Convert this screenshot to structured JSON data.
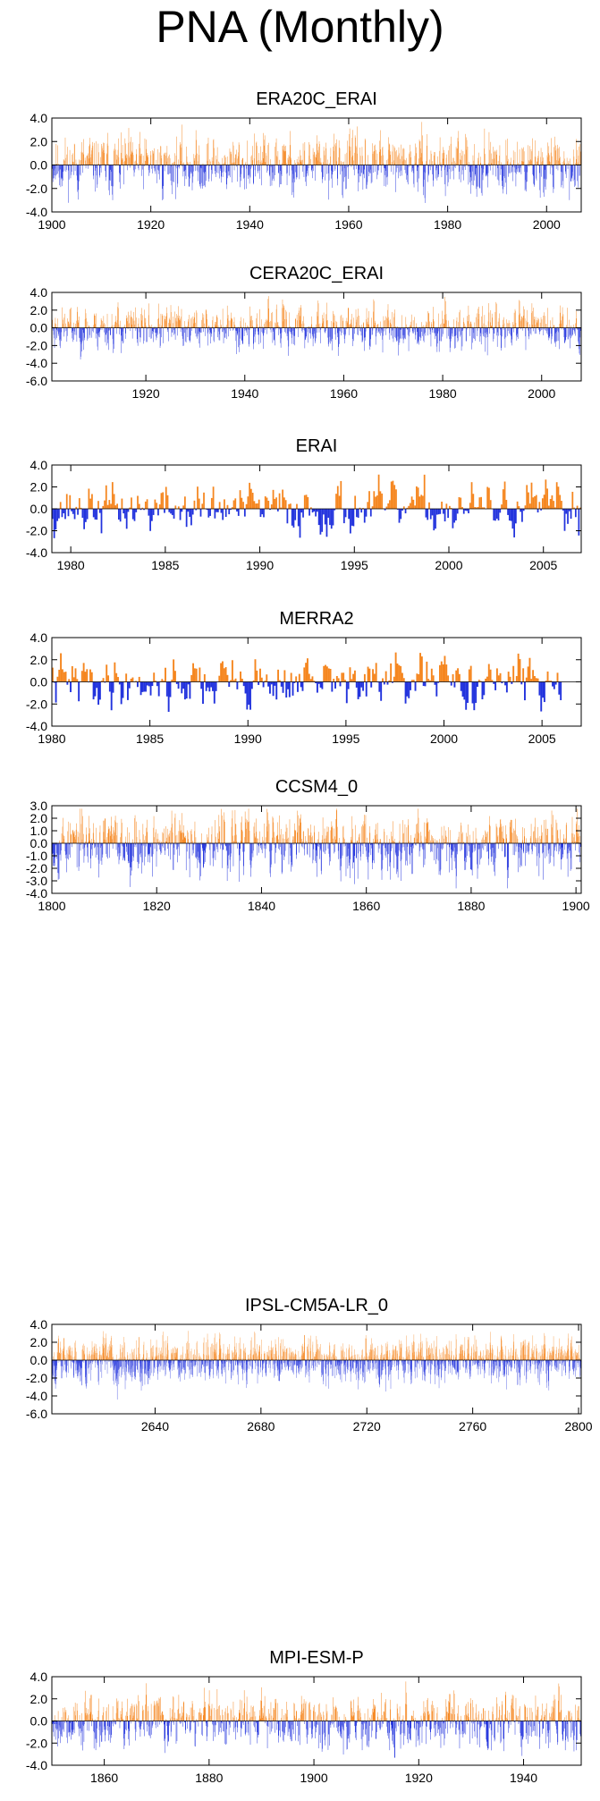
{
  "title": "PNA (Monthly)",
  "colors": {
    "positive": "#f5861f",
    "negative": "#2233dd",
    "axis": "#000000"
  },
  "chart_data": [
    {
      "type": "bar",
      "title": "ERA20C_ERAI",
      "xlim": [
        1900,
        2007
      ],
      "ylim": [
        -4.0,
        4.0
      ],
      "yticks": [
        "4.0",
        "2.0",
        "0.0",
        "-2.0",
        "-4.0"
      ],
      "xticks": [
        "1900",
        "1920",
        "1940",
        "1960",
        "1980",
        "2000"
      ],
      "x_start": 1900,
      "n_months": 1284,
      "amp": 1.1,
      "seed": 11
    },
    {
      "type": "bar",
      "title": "CERA20C_ERAI",
      "xlim": [
        1901,
        2008
      ],
      "ylim": [
        -6.0,
        4.0
      ],
      "yticks": [
        "4.0",
        "2.0",
        "0.0",
        "-2.0",
        "-4.0",
        "-6.0"
      ],
      "xticks": [
        "1920",
        "1940",
        "1960",
        "1980",
        "2000"
      ],
      "x_start": 1901,
      "n_months": 1284,
      "amp": 1.1,
      "seed": 23
    },
    {
      "type": "bar",
      "title": "ERAI",
      "xlim": [
        1979,
        2007
      ],
      "ylim": [
        -4.0,
        4.0
      ],
      "yticks": [
        "4.0",
        "2.0",
        "0.0",
        "-2.0",
        "-4.0"
      ],
      "xticks": [
        "1980",
        "1985",
        "1990",
        "1995",
        "2000",
        "2005"
      ],
      "x_start": 1979,
      "n_months": 336,
      "amp": 1.0,
      "seed": 37
    },
    {
      "type": "bar",
      "title": "MERRA2",
      "xlim": [
        1980,
        2007
      ],
      "ylim": [
        -4.0,
        4.0
      ],
      "yticks": [
        "4.0",
        "2.0",
        "0.0",
        "-2.0",
        "-4.0"
      ],
      "xticks": [
        "1980",
        "1985",
        "1990",
        "1995",
        "2000",
        "2005"
      ],
      "x_start": 1980,
      "n_months": 312,
      "amp": 1.0,
      "seed": 41
    },
    {
      "type": "bar",
      "title": "CCSM4_0",
      "xlim": [
        1800,
        1901
      ],
      "ylim": [
        -4.0,
        3.0
      ],
      "yticks": [
        "3.0",
        "2.0",
        "1.0",
        "0.0",
        "-1.0",
        "-2.0",
        "-3.0",
        "-4.0"
      ],
      "xticks": [
        "1800",
        "1820",
        "1840",
        "1860",
        "1880",
        "1900"
      ],
      "x_start": 1800,
      "n_months": 1212,
      "amp": 1.1,
      "seed": 53
    },
    {
      "type": "bar",
      "title": "IPSL-CM5A-LR_0",
      "xlim": [
        2601,
        2801
      ],
      "ylim": [
        -6.0,
        4.0
      ],
      "yticks": [
        "4.0",
        "2.0",
        "0.0",
        "-2.0",
        "-4.0",
        "-6.0"
      ],
      "xticks": [
        "2640",
        "2680",
        "2720",
        "2760",
        "2800"
      ],
      "x_start": 2601,
      "n_months": 2400,
      "amp": 1.1,
      "seed": 67
    },
    {
      "type": "bar",
      "title": "MPI-ESM-P",
      "xlim": [
        1850,
        1951
      ],
      "ylim": [
        -4.0,
        4.0
      ],
      "yticks": [
        "4.0",
        "2.0",
        "0.0",
        "-2.0",
        "-4.0"
      ],
      "xticks": [
        "1860",
        "1880",
        "1900",
        "1920",
        "1940"
      ],
      "x_start": 1850,
      "n_months": 1212,
      "amp": 1.1,
      "seed": 79
    }
  ]
}
